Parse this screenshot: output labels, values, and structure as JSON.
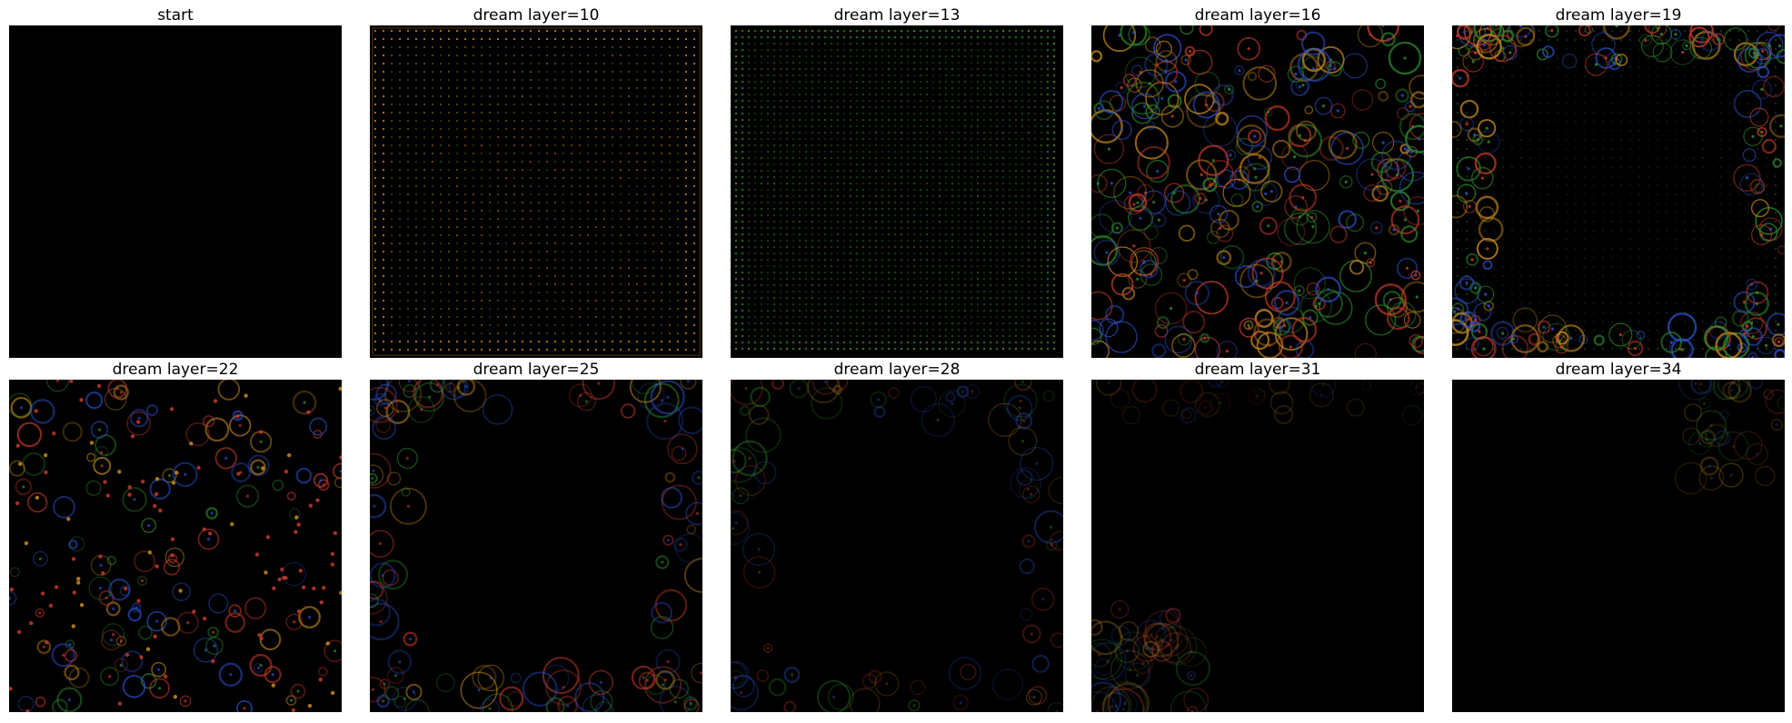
{
  "panels": [
    {
      "title": "start",
      "style": "blank"
    },
    {
      "title": "dream layer=10",
      "style": "dot-grid-orange"
    },
    {
      "title": "dream layer=13",
      "style": "dot-grid-green"
    },
    {
      "title": "dream layer=16",
      "style": "swirl-dense"
    },
    {
      "title": "dream layer=19",
      "style": "swirl-frame"
    },
    {
      "title": "dream layer=22",
      "style": "eye-pattern"
    },
    {
      "title": "dream layer=25",
      "style": "corner-swirls"
    },
    {
      "title": "dream layer=28",
      "style": "corner-swirls-faint"
    },
    {
      "title": "dream layer=31",
      "style": "bottom-left-swirl"
    },
    {
      "title": "dream layer=34",
      "style": "top-right-faint"
    }
  ],
  "colors": {
    "background": "#000000",
    "orange": "#c88a1e",
    "green": "#2e8b2e",
    "red": "#c0392b",
    "blue": "#2b4cc0"
  }
}
